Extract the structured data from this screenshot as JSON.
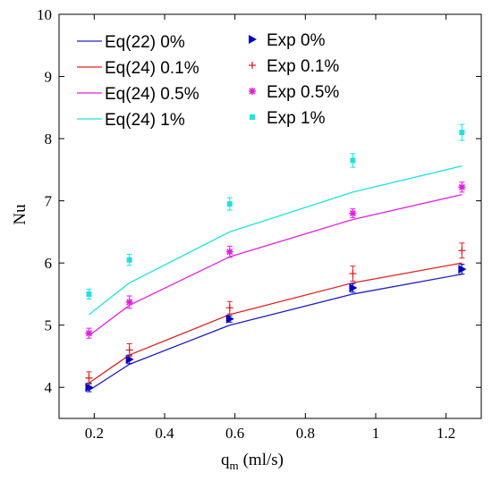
{
  "chart_data": {
    "type": "line",
    "xlabel": "q",
    "xlabel_sub": "m",
    "xlabel_unit": "(ml/s)",
    "ylabel": "Nu",
    "xlim": [
      0.1,
      1.3
    ],
    "ylim": [
      3.5,
      10
    ],
    "xticks": [
      0.2,
      0.4,
      0.6,
      0.8,
      1,
      1.2
    ],
    "xtick_labels": [
      "0.2",
      "0.4",
      "0.6",
      "0.8",
      "1",
      "1.2"
    ],
    "yticks": [
      4,
      5,
      6,
      7,
      8,
      9,
      10
    ],
    "ytick_labels": [
      "4",
      "5",
      "6",
      "7",
      "8",
      "9",
      "10"
    ],
    "grid": false,
    "legend_placement": "top-left",
    "series": [
      {
        "name": "Eq(22)  0%",
        "kind": "line",
        "color": "#2020c0",
        "x": [
          0.185,
          0.3,
          0.585,
          0.935,
          1.245
        ],
        "y": [
          3.95,
          4.37,
          5.0,
          5.5,
          5.82
        ]
      },
      {
        "name": "Eq(24) 0.1%",
        "kind": "line",
        "color": "#e02020",
        "x": [
          0.185,
          0.3,
          0.585,
          0.935,
          1.245
        ],
        "y": [
          4.07,
          4.52,
          5.17,
          5.68,
          6.0
        ]
      },
      {
        "name": "Eq(24) 0.5%",
        "kind": "line",
        "color": "#e020e0",
        "x": [
          0.185,
          0.3,
          0.585,
          0.935,
          1.245
        ],
        "y": [
          4.83,
          5.32,
          6.1,
          6.7,
          7.1
        ]
      },
      {
        "name": "Eq(24)  1%",
        "kind": "line",
        "color": "#20e0e0",
        "x": [
          0.185,
          0.3,
          0.585,
          0.935,
          1.245
        ],
        "y": [
          5.17,
          5.68,
          6.5,
          7.14,
          7.56
        ]
      },
      {
        "name": "Exp  0%",
        "kind": "marker",
        "marker": "triangle",
        "color": "#0000c0",
        "x": [
          0.185,
          0.3,
          0.585,
          0.935,
          1.245
        ],
        "y": [
          4.0,
          4.45,
          5.1,
          5.6,
          5.9
        ],
        "err": [
          0.07,
          0.07,
          0.05,
          0.07,
          0.08
        ]
      },
      {
        "name": "Exp 0.1%",
        "kind": "marker",
        "marker": "plus",
        "color": "#e02020",
        "x": [
          0.185,
          0.3,
          0.585,
          0.935,
          1.245
        ],
        "y": [
          4.15,
          4.6,
          5.28,
          5.83,
          6.2
        ],
        "err": [
          0.1,
          0.1,
          0.1,
          0.12,
          0.12
        ]
      },
      {
        "name": "Exp 0.5%",
        "kind": "marker",
        "marker": "star",
        "color": "#e020e0",
        "x": [
          0.185,
          0.3,
          0.585,
          0.935,
          1.245
        ],
        "y": [
          4.87,
          5.37,
          6.18,
          6.8,
          7.22
        ],
        "err": [
          0.08,
          0.1,
          0.09,
          0.07,
          0.08
        ]
      },
      {
        "name": "Exp  1%",
        "kind": "marker",
        "marker": "square",
        "color": "#20e0e0",
        "x": [
          0.185,
          0.3,
          0.585,
          0.935,
          1.245
        ],
        "y": [
          5.5,
          6.05,
          6.95,
          7.65,
          8.1
        ],
        "err": [
          0.08,
          0.09,
          0.1,
          0.11,
          0.13
        ]
      }
    ]
  }
}
